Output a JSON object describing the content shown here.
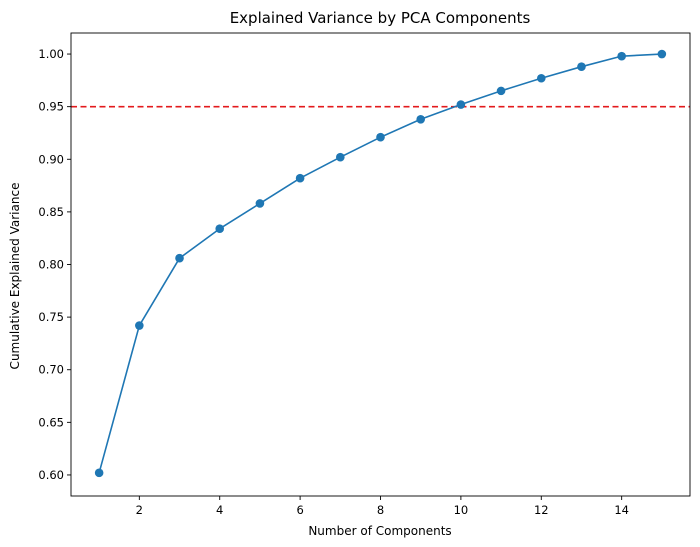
{
  "chart_data": {
    "type": "line",
    "title": "Explained Variance by PCA Components",
    "xlabel": "Number of Components",
    "ylabel": "Cumulative Explained Variance",
    "xlim": [
      0.3,
      15.7
    ],
    "ylim": [
      0.58,
      1.02
    ],
    "grid": false,
    "xticks": [
      2,
      4,
      6,
      8,
      10,
      12,
      14
    ],
    "yticks": [
      0.6,
      0.65,
      0.7,
      0.75,
      0.8,
      0.85,
      0.9,
      0.95,
      1.0
    ],
    "series": [
      {
        "x": [
          1,
          2,
          3,
          4,
          5,
          6,
          7,
          8,
          9,
          10,
          11,
          12,
          13,
          14,
          15
        ],
        "values": [
          0.602,
          0.742,
          0.806,
          0.834,
          0.858,
          0.882,
          0.902,
          0.921,
          0.938,
          0.952,
          0.965,
          0.977,
          0.988,
          0.998,
          1.0
        ],
        "color": "#1f77b4",
        "marker": "circle"
      }
    ],
    "reference_lines": [
      {
        "axis": "y",
        "value": 0.95,
        "color": "#e31a1c",
        "style": "dashed"
      }
    ]
  }
}
